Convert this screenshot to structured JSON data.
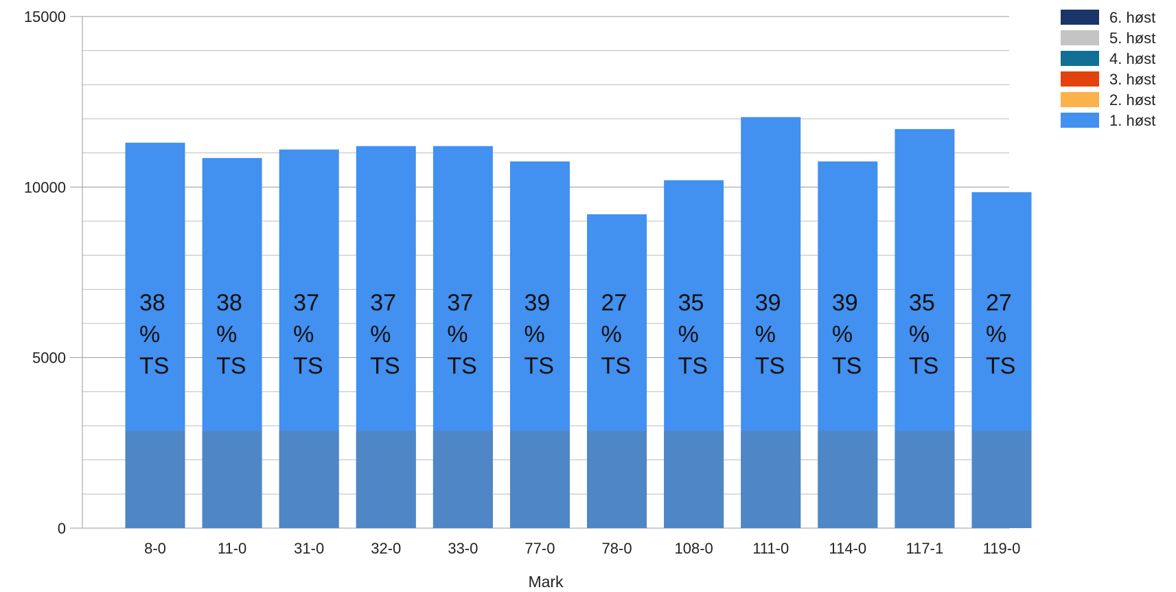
{
  "chart_data": {
    "type": "bar",
    "stacked": true,
    "xlabel": "Mark",
    "ylabel": "",
    "ylim": [
      0,
      15000
    ],
    "yticks": [
      0,
      5000,
      10000,
      15000
    ],
    "grid": true,
    "legend_position": "top-right",
    "categories": [
      "8-0",
      "11-0",
      "31-0",
      "32-0",
      "33-0",
      "77-0",
      "78-0",
      "108-0",
      "111-0",
      "114-0",
      "117-1",
      "119-0"
    ],
    "series": [
      {
        "name": "1. høst",
        "color": "#4290f0",
        "values": [
          11300,
          10850,
          11100,
          11200,
          11200,
          10750,
          9200,
          10200,
          12050,
          10750,
          11700,
          9850
        ]
      },
      {
        "name": "2. høst",
        "color": "#fbb24a",
        "values": [
          0,
          0,
          0,
          0,
          0,
          0,
          0,
          0,
          0,
          0,
          0,
          0
        ]
      },
      {
        "name": "3. høst",
        "color": "#e3420d",
        "values": [
          0,
          0,
          0,
          0,
          0,
          0,
          0,
          0,
          0,
          0,
          0,
          0
        ]
      },
      {
        "name": "4. høst",
        "color": "#116f95",
        "values": [
          0,
          0,
          0,
          0,
          0,
          0,
          0,
          0,
          0,
          0,
          0,
          0
        ]
      },
      {
        "name": "5. høst",
        "color": "#c4c4c4",
        "values": [
          0,
          0,
          0,
          0,
          0,
          0,
          0,
          0,
          0,
          0,
          0,
          0
        ]
      },
      {
        "name": "6. høst",
        "color": "#1c3568",
        "values": [
          0,
          0,
          0,
          0,
          0,
          0,
          0,
          0,
          0,
          0,
          0,
          0
        ]
      }
    ],
    "legend_order": [
      "6. høst",
      "5. høst",
      "4. høst",
      "3. høst",
      "2. høst",
      "1. høst"
    ],
    "band_value": 2850,
    "band_color": "#4f86c6",
    "annotations": [
      [
        "38",
        "%",
        "TS"
      ],
      [
        "38",
        "%",
        "TS"
      ],
      [
        "37",
        "%",
        "TS"
      ],
      [
        "37",
        "%",
        "TS"
      ],
      [
        "37",
        "%",
        "TS"
      ],
      [
        "39",
        "%",
        "TS"
      ],
      [
        "27",
        "%",
        "TS"
      ],
      [
        "35",
        "%",
        "TS"
      ],
      [
        "39",
        "%",
        "TS"
      ],
      [
        "39",
        "%",
        "TS"
      ],
      [
        "35",
        "%",
        "TS"
      ],
      [
        "27",
        "%",
        "TS"
      ]
    ]
  }
}
